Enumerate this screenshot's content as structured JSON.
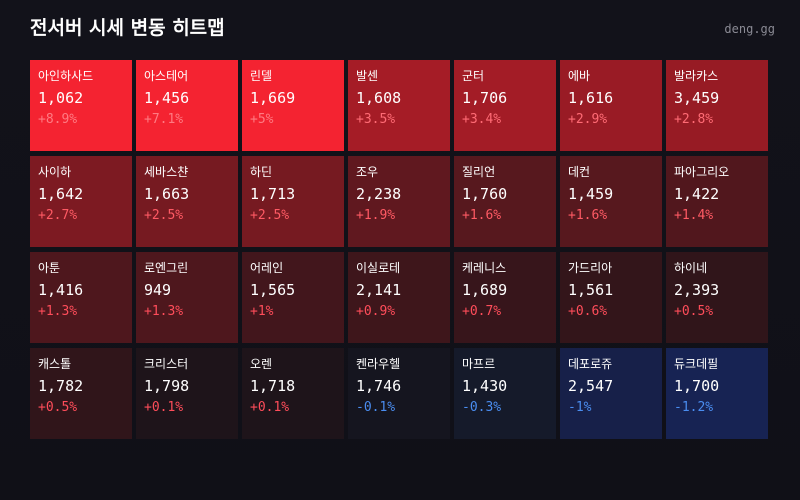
{
  "header": {
    "title": "전서버 시세 변동 히트맵",
    "brand": "deng.gg"
  },
  "colors": {
    "background": "#111119",
    "up_text": "#ff4d5a",
    "down_text": "#4a8df0"
  },
  "cells": [
    {
      "name": "아인하사드",
      "price": "1,062",
      "change": "+8.9%",
      "bg": "#f42331",
      "change_color": "#ff7a82"
    },
    {
      "name": "아스테어",
      "price": "1,456",
      "change": "+7.1%",
      "bg": "#f42331",
      "change_color": "#ff7a82"
    },
    {
      "name": "린델",
      "price": "1,669",
      "change": "+5%",
      "bg": "#f42331",
      "change_color": "#ff7a82"
    },
    {
      "name": "발센",
      "price": "1,608",
      "change": "+3.5%",
      "bg": "#a51c26",
      "change_color": "#ff6b75"
    },
    {
      "name": "군터",
      "price": "1,706",
      "change": "+3.4%",
      "bg": "#a31c26",
      "change_color": "#ff6b75"
    },
    {
      "name": "에바",
      "price": "1,616",
      "change": "+2.9%",
      "bg": "#991b25",
      "change_color": "#ff6b75"
    },
    {
      "name": "발라카스",
      "price": "3,459",
      "change": "+2.8%",
      "bg": "#971b24",
      "change_color": "#ff6b75"
    },
    {
      "name": "사이하",
      "price": "1,642",
      "change": "+2.7%",
      "bg": "#7d1a22",
      "change_color": "#ff5a64"
    },
    {
      "name": "세바스챤",
      "price": "1,663",
      "change": "+2.5%",
      "bg": "#761a21",
      "change_color": "#ff5a64"
    },
    {
      "name": "하딘",
      "price": "1,713",
      "change": "+2.5%",
      "bg": "#761a21",
      "change_color": "#ff5a64"
    },
    {
      "name": "조우",
      "price": "2,238",
      "change": "+1.9%",
      "bg": "#60181f",
      "change_color": "#ff5a64"
    },
    {
      "name": "질리언",
      "price": "1,760",
      "change": "+1.6%",
      "bg": "#57181e",
      "change_color": "#ff5a64"
    },
    {
      "name": "데컨",
      "price": "1,459",
      "change": "+1.6%",
      "bg": "#57181e",
      "change_color": "#ff5a64"
    },
    {
      "name": "파아그리오",
      "price": "1,422",
      "change": "+1.4%",
      "bg": "#51171d",
      "change_color": "#ff5a64"
    },
    {
      "name": "아툰",
      "price": "1,416",
      "change": "+1.3%",
      "bg": "#4e171d",
      "change_color": "#ff4d5a"
    },
    {
      "name": "로엔그린",
      "price": "949",
      "change": "+1.3%",
      "bg": "#4e171d",
      "change_color": "#ff4d5a"
    },
    {
      "name": "어레인",
      "price": "1,565",
      "change": "+1%",
      "bg": "#42161c",
      "change_color": "#ff4d5a"
    },
    {
      "name": "이실로테",
      "price": "2,141",
      "change": "+0.9%",
      "bg": "#3e161b",
      "change_color": "#ff4d5a"
    },
    {
      "name": "케레니스",
      "price": "1,689",
      "change": "+0.7%",
      "bg": "#37151b",
      "change_color": "#ff4d5a"
    },
    {
      "name": "가드리아",
      "price": "1,561",
      "change": "+0.6%",
      "bg": "#33151a",
      "change_color": "#ff4d5a"
    },
    {
      "name": "하이네",
      "price": "2,393",
      "change": "+0.5%",
      "bg": "#30151a",
      "change_color": "#ff4d5a"
    },
    {
      "name": "캐스톨",
      "price": "1,782",
      "change": "+0.5%",
      "bg": "#30151a",
      "change_color": "#ff4d5a"
    },
    {
      "name": "크리스터",
      "price": "1,798",
      "change": "+0.1%",
      "bg": "#1e141a",
      "change_color": "#ff4d5a"
    },
    {
      "name": "오렌",
      "price": "1,718",
      "change": "+0.1%",
      "bg": "#1e141a",
      "change_color": "#ff4d5a"
    },
    {
      "name": "켄라우헬",
      "price": "1,746",
      "change": "-0.1%",
      "bg": "#15151f",
      "change_color": "#4a8df0"
    },
    {
      "name": "마프르",
      "price": "1,430",
      "change": "-0.3%",
      "bg": "#151a2a",
      "change_color": "#4a8df0"
    },
    {
      "name": "데포로쥬",
      "price": "2,547",
      "change": "-1%",
      "bg": "#172049",
      "change_color": "#4a8df0"
    },
    {
      "name": "듀크데필",
      "price": "1,700",
      "change": "-1.2%",
      "bg": "#172353",
      "change_color": "#4a8df0"
    }
  ]
}
